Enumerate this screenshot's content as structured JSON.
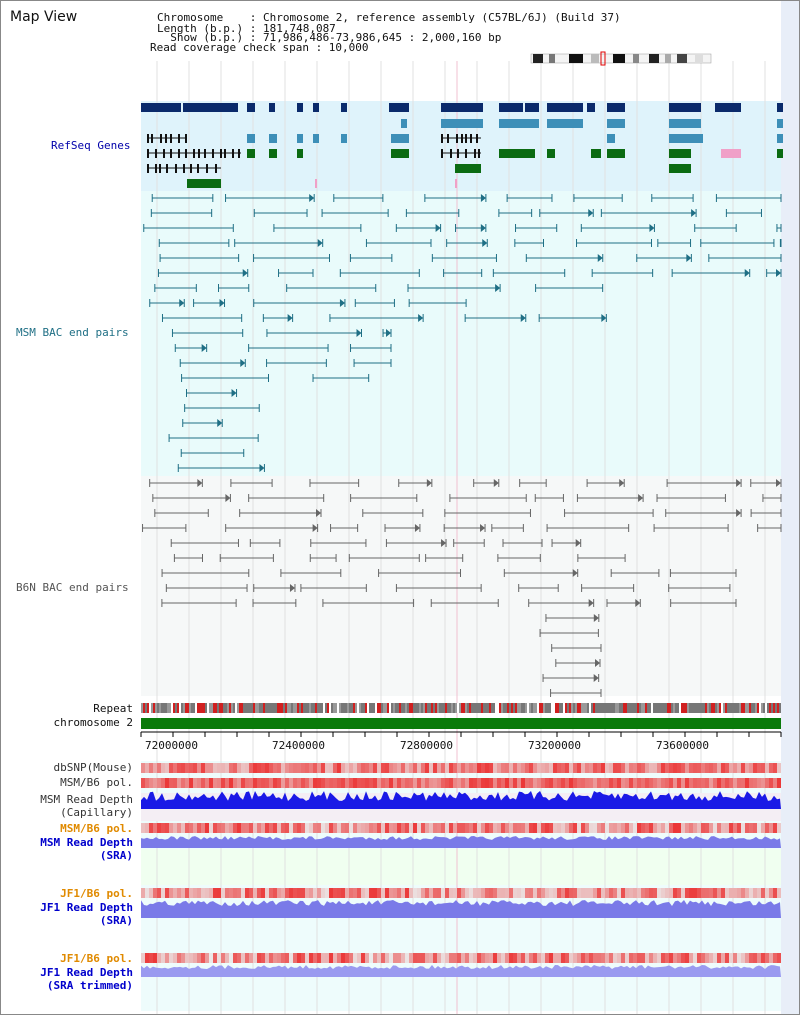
{
  "header": {
    "map_title": "Map View",
    "lines": [
      "Chromosome    : Chromosome 2, reference assembly (C57BL/6J) (Build 37)",
      "Length (b.p.) : 181,748,087",
      "  Show (b.p.) : 71,986,486-73,986,645 : 2,000,160 bp",
      "Read coverage check span : 10,000"
    ]
  },
  "tracks": {
    "refseq": "RefSeq Genes",
    "msm_bac": "MSM BAC end pairs",
    "b6n_bac": "B6N BAC end pairs",
    "repeat": "Repeat",
    "chromosome": "chromosome 2",
    "dbsnp": "dbSNP(Mouse)",
    "msm_b6_pol_1": "MSM/B6 pol.",
    "msm_read_depth_cap_1": "MSM Read Depth",
    "msm_read_depth_cap_2": "(Capillary)",
    "msm_b6_pol_2": "MSM/B6 pol.",
    "msm_read_depth_sra_1": "MSM Read Depth",
    "msm_read_depth_sra_2": "(SRA)",
    "jf1_b6_pol_1": "JF1/B6 pol.",
    "jf1_read_depth_sra_1": "JF1 Read Depth",
    "jf1_read_depth_sra_2": "(SRA)",
    "jf1_b6_pol_2": "JF1/B6 pol.",
    "jf1_read_depth_trim_1": "JF1 Read Depth",
    "jf1_read_depth_trim_2": "(SRA trimmed)"
  },
  "ruler": {
    "ticks": [
      "72000000",
      "72400000",
      "72800000",
      "73200000",
      "73600000"
    ]
  },
  "colors": {
    "refseq_bg": "#dff3fb",
    "bac_bg": "#e9fbfb",
    "gene_dark": "#0a2a6b",
    "gene_mid": "#3d8fb8",
    "gene_green": "#0b6b12",
    "gene_pink": "#f0a0c8",
    "msm_bac": "#1f6f85",
    "b6n_bac": "#666666",
    "chromosome": "#0a7a0a",
    "depth_cap": "#1a1ae6",
    "depth_sra": "#7a7ae8",
    "pol_red": "#e83a3a"
  }
}
